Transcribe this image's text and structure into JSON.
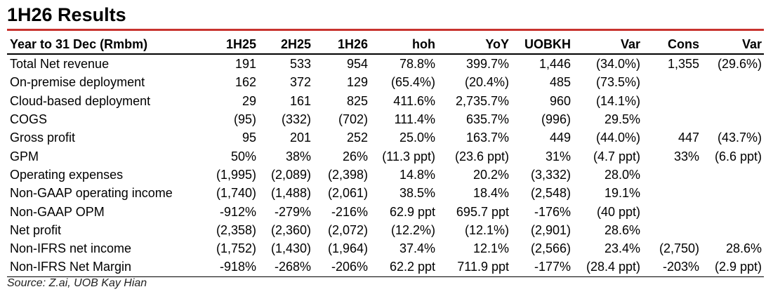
{
  "title": "1H26 Results",
  "table": {
    "header": [
      "Year to 31 Dec (Rmbm)",
      "1H25",
      "2H25",
      "1H26",
      "hoh",
      "YoY",
      "UOBKH",
      "Var",
      "Cons",
      "Var"
    ],
    "rows": [
      [
        "Total Net revenue",
        "191",
        "533",
        "954",
        "78.8%",
        "399.7%",
        "1,446",
        "(34.0%)",
        "1,355",
        "(29.6%)"
      ],
      [
        "On-premise deployment",
        "162",
        "372",
        "129",
        "(65.4%)",
        "(20.4%)",
        "485",
        "(73.5%)"
      ],
      [
        "Cloud-based deployment",
        "29",
        "161",
        "825",
        "411.6%",
        "2,735.7%",
        "960",
        "(14.1%)"
      ],
      [
        "COGS",
        "(95)",
        "(332)",
        "(702)",
        "111.4%",
        "635.7%",
        "(996)",
        "29.5%"
      ],
      [
        "Gross profit",
        "95",
        "201",
        "252",
        "25.0%",
        "163.7%",
        "449",
        "(44.0%)",
        "447",
        "(43.7%)"
      ],
      [
        "GPM",
        "50%",
        "38%",
        "26%",
        "(11.3 ppt)",
        "(23.6 ppt)",
        "31%",
        "(4.7 ppt)",
        "33%",
        "(6.6 ppt)"
      ],
      [
        "Operating expenses",
        "(1,995)",
        "(2,089)",
        "(2,398)",
        "14.8%",
        "20.2%",
        "(3,332)",
        "28.0%"
      ],
      [
        "Non-GAAP operating income",
        "(1,740)",
        "(1,488)",
        "(2,061)",
        "38.5%",
        "18.4%",
        "(2,548)",
        "19.1%"
      ],
      [
        "Non-GAAP OPM",
        "-912%",
        "-279%",
        "-216%",
        "62.9 ppt",
        "695.7 ppt",
        "-176%",
        "(40 ppt)"
      ],
      [
        "Net profit",
        "(2,358)",
        "(2,360)",
        "(2,072)",
        "(12.2%)",
        "(12.1%)",
        "(2,901)",
        "28.6%"
      ],
      [
        "Non-IFRS net income",
        "(1,752)",
        "(1,430)",
        "(1,964)",
        "37.4%",
        "12.1%",
        "(2,566)",
        "23.4%",
        "(2,750)",
        "28.6%"
      ],
      [
        "Non-IFRS Net Margin",
        "-918%",
        "-268%",
        "-206%",
        "62.2 ppt",
        "711.9 ppt",
        "-177%",
        "(28.4 ppt)",
        "-203%",
        "(2.9 ppt)"
      ]
    ]
  },
  "source": "Source: Z.ai, UOB Kay Hian"
}
